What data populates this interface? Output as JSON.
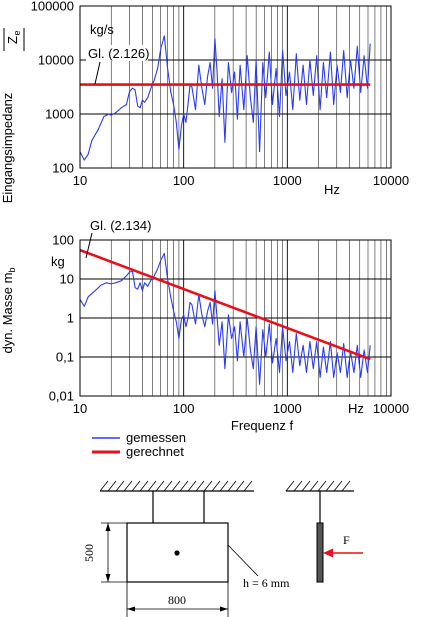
{
  "chart_data": [
    {
      "type": "line",
      "ylabel": "Eingangsimpedanz",
      "ylabel_symbol": "Z",
      "ylabel_subscript": "e",
      "yunit": "kg/s",
      "xunit": "Hz",
      "xscale": "log",
      "yscale": "log",
      "xlim": [
        10,
        10000
      ],
      "ylim": [
        100,
        100000
      ],
      "xticks": [
        "10",
        "100",
        "1000",
        "10000"
      ],
      "yticks": [
        "100",
        "1000",
        "10000",
        "100000"
      ],
      "grid": true,
      "annotation": "Gl. (2.126)",
      "series": [
        {
          "name": "gemessen",
          "color": "#2a3cf0",
          "x": [
            10,
            11,
            12,
            13,
            15,
            17,
            19,
            20,
            22,
            25,
            28,
            30,
            32,
            34,
            36,
            38,
            40,
            42,
            45,
            48,
            52,
            56,
            60,
            65,
            70,
            75,
            80,
            85,
            90,
            95,
            100,
            105,
            110,
            115,
            120,
            130,
            140,
            150,
            160,
            170,
            180,
            190,
            200,
            210,
            220,
            235,
            250,
            270,
            290,
            310,
            330,
            350,
            380,
            410,
            440,
            470,
            500,
            540,
            580,
            620,
            670,
            720,
            780,
            840,
            900,
            970,
            1050,
            1130,
            1220,
            1320,
            1420,
            1530,
            1650,
            1780,
            1920,
            2070,
            2230,
            2400,
            2600,
            2800,
            3020,
            3250,
            3500,
            3780,
            4070,
            4390,
            4730,
            5100,
            5500,
            5930,
            6300
          ],
          "y": [
            200,
            140,
            180,
            320,
            520,
            900,
            1000,
            950,
            1050,
            1300,
            1500,
            2600,
            3000,
            2800,
            1400,
            1300,
            1800,
            1650,
            2000,
            2900,
            4200,
            7000,
            16000,
            28000,
            7000,
            2600,
            1500,
            700,
            220,
            600,
            1000,
            700,
            1500,
            3400,
            3200,
            1200,
            8000,
            3000,
            1500,
            5000,
            9000,
            3000,
            25000,
            6000,
            900,
            4500,
            300,
            9000,
            2500,
            6000,
            800,
            8000,
            1200,
            12000,
            2000,
            700,
            10000,
            200,
            9000,
            2000,
            14000,
            1500,
            7000,
            900,
            15000,
            2200,
            6000,
            1200,
            13000,
            1800,
            8000,
            1500,
            10000,
            2200,
            12000,
            1200,
            9000,
            2000,
            14000,
            1500,
            8000,
            2500,
            15000,
            2000,
            10000,
            3000,
            18000,
            2500,
            12000,
            3000,
            20000
          ]
        },
        {
          "name": "gerechnet",
          "color": "#e8101a",
          "x": [
            10,
            6300
          ],
          "y": [
            3500,
            3500
          ]
        }
      ]
    },
    {
      "type": "line",
      "xlabel": "Frequenz  f",
      "ylabel": "dyn. Masse m",
      "ylabel_subscript": "b",
      "yunit": "kg",
      "xunit": "Hz",
      "xscale": "log",
      "yscale": "log",
      "xlim": [
        10,
        10000
      ],
      "ylim": [
        0.01,
        100
      ],
      "xticks": [
        "10",
        "100",
        "1000",
        "10000"
      ],
      "yticks": [
        "0,01",
        "0,1",
        "1",
        "10",
        "100"
      ],
      "grid": true,
      "annotation": "Gl. (2.134)",
      "legend_position": "bottom-left",
      "series": [
        {
          "name": "gemessen",
          "color": "#2a3cf0",
          "x": [
            10,
            11,
            12,
            14,
            16,
            18,
            20,
            22,
            25,
            28,
            30,
            32,
            34,
            36,
            38,
            40,
            42,
            45,
            48,
            52,
            56,
            60,
            65,
            70,
            75,
            80,
            85,
            90,
            95,
            100,
            105,
            110,
            115,
            120,
            130,
            140,
            150,
            160,
            170,
            180,
            190,
            200,
            210,
            220,
            235,
            250,
            270,
            290,
            310,
            330,
            350,
            380,
            410,
            440,
            470,
            500,
            540,
            580,
            620,
            670,
            720,
            780,
            840,
            900,
            970,
            1050,
            1130,
            1220,
            1320,
            1420,
            1530,
            1650,
            1780,
            1920,
            2070,
            2230,
            2400,
            2600,
            2800,
            3020,
            3250,
            3500,
            3780,
            4070,
            4390,
            4730,
            5100,
            5500,
            5930,
            6300
          ],
          "y": [
            3,
            2,
            3.5,
            5,
            7,
            8,
            7.5,
            8,
            9,
            12,
            15,
            16,
            6,
            5.5,
            8,
            5,
            8,
            6.5,
            9,
            12,
            18,
            30,
            45,
            10,
            3.5,
            1.5,
            0.8,
            0.3,
            0.9,
            1.2,
            0.6,
            1,
            2.5,
            2.2,
            0.7,
            4,
            1.2,
            0.6,
            1.5,
            2.5,
            0.7,
            5,
            1,
            0.2,
            0.8,
            0.05,
            1.2,
            0.3,
            0.6,
            0.08,
            0.8,
            0.1,
            1,
            0.15,
            0.05,
            0.6,
            0.02,
            0.5,
            0.1,
            0.7,
            0.07,
            0.3,
            0.04,
            0.6,
            0.08,
            0.25,
            0.04,
            0.4,
            0.06,
            0.2,
            0.04,
            0.25,
            0.05,
            0.25,
            0.03,
            0.18,
            0.04,
            0.25,
            0.03,
            0.13,
            0.04,
            0.22,
            0.03,
            0.14,
            0.04,
            0.2,
            0.03,
            0.15,
            0.04,
            0.2
          ]
        },
        {
          "name": "gerechnet",
          "color": "#e8101a",
          "x": [
            10,
            6300
          ],
          "y": [
            55,
            0.088
          ]
        }
      ]
    }
  ],
  "legend": {
    "entries": [
      {
        "label": "gemessen",
        "color": "#2a3cf0"
      },
      {
        "label": "gerechnet",
        "color": "#e8101a"
      }
    ]
  },
  "diagram": {
    "dim_height": "500",
    "dim_width": "800",
    "thickness": "h = 6 mm",
    "force": "F"
  }
}
